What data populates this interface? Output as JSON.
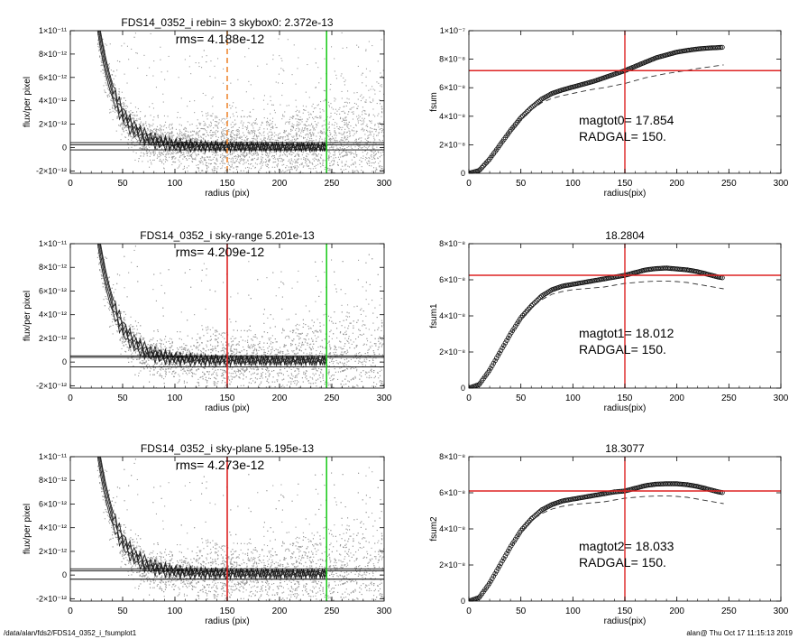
{
  "footer": {
    "left": "/data/alan/fds2/FDS14_0352_i_fsumplot1",
    "right": "alan@  Thu Oct 17 11:15:13 2019"
  },
  "colors": {
    "red": "#dd2222",
    "green": "#22cc22",
    "orange": "#ee8833",
    "points": "#9a9a9a"
  },
  "chart_data": [
    {
      "type": "scatter",
      "title": "FDS14_0352_i rebin= 3    skybox0:  2.372e-13",
      "annotation": "rms= 4.188e-12",
      "xlabel": "radius (pix)",
      "ylabel": "flux/per pixel",
      "xlim": [
        0,
        300
      ],
      "ylim": [
        -2.2e-12,
        1e-11
      ],
      "xticks": [
        0,
        50,
        100,
        150,
        200,
        250,
        300
      ],
      "yticks": [
        "-2×10⁻¹²",
        "0",
        "2×10⁻¹²",
        "4×10⁻¹²",
        "6×10⁻¹²",
        "8×10⁻¹²",
        "1×10⁻¹¹"
      ],
      "yticks_values": [
        -2e-12,
        0,
        2e-12,
        4e-12,
        6e-12,
        8e-12,
        1e-11
      ],
      "hlines": [
        2.372e-13,
        4.2e-13,
        -2e-13
      ],
      "vlines": [
        {
          "x": 150,
          "color": "orange",
          "dashed": true
        },
        {
          "x": 245,
          "color": "green",
          "dashed": false
        }
      ]
    },
    {
      "type": "scatter",
      "title": "FDS14_0352_i sky-range  5.201e-13",
      "annotation": "rms= 4.209e-12",
      "xlabel": "radius (pix)",
      "ylabel": "flux/per pixel",
      "xlim": [
        0,
        300
      ],
      "ylim": [
        -2.2e-12,
        1e-11
      ],
      "xticks": [
        0,
        50,
        100,
        150,
        200,
        250,
        300
      ],
      "yticks": [
        "-2×10⁻¹²",
        "0",
        "2×10⁻¹²",
        "4×10⁻¹²",
        "6×10⁻¹²",
        "8×10⁻¹²",
        "1×10⁻¹¹"
      ],
      "yticks_values": [
        -2e-12,
        0,
        2e-12,
        4e-12,
        6e-12,
        8e-12,
        1e-11
      ],
      "hlines": [
        5.201e-13,
        4e-13,
        -4e-13
      ],
      "vlines": [
        {
          "x": 150,
          "color": "red",
          "dashed": false
        },
        {
          "x": 245,
          "color": "green",
          "dashed": false
        }
      ]
    },
    {
      "type": "scatter",
      "title": "FDS14_0352_i sky-plane  5.195e-13",
      "annotation": "rms= 4.273e-12",
      "xlabel": "radius (pix)",
      "ylabel": "flux/per pixel",
      "xlim": [
        0,
        300
      ],
      "ylim": [
        -2.2e-12,
        1e-11
      ],
      "xticks": [
        0,
        50,
        100,
        150,
        200,
        250,
        300
      ],
      "yticks": [
        "-2×10⁻¹²",
        "0",
        "2×10⁻¹²",
        "4×10⁻¹²",
        "6×10⁻¹²",
        "8×10⁻¹²",
        "1×10⁻¹¹"
      ],
      "yticks_values": [
        -2e-12,
        0,
        2e-12,
        4e-12,
        6e-12,
        8e-12,
        1e-11
      ],
      "hlines": [
        5.195e-13,
        3.5e-13,
        -3.5e-13
      ],
      "vlines": [
        {
          "x": 150,
          "color": "red",
          "dashed": false
        },
        {
          "x": 245,
          "color": "green",
          "dashed": false
        }
      ]
    },
    {
      "type": "line",
      "title": "",
      "xlabel": "radius(pix)",
      "ylabel": "fsum",
      "annotations": [
        "magtot0=  17.854",
        "RADGAL=    150."
      ],
      "xlim": [
        0,
        300
      ],
      "ylim": [
        0,
        1e-07
      ],
      "xticks": [
        0,
        50,
        100,
        150,
        200,
        250,
        300
      ],
      "yticks": [
        "0",
        "2×10⁻⁸",
        "4×10⁻⁸",
        "6×10⁻⁸",
        "8×10⁻⁸",
        "1×10⁻⁷"
      ],
      "yticks_values": [
        0,
        2e-08,
        4e-08,
        6e-08,
        8e-08,
        1e-07
      ],
      "cross": {
        "x": 150,
        "y": 7.2e-08
      },
      "series": [
        {
          "style": "markers",
          "x": [
            0,
            10,
            20,
            30,
            40,
            50,
            60,
            70,
            80,
            90,
            100,
            110,
            120,
            130,
            140,
            150,
            160,
            170,
            180,
            190,
            200,
            210,
            220,
            230,
            240,
            245
          ],
          "values": [
            0,
            2e-09,
            1e-08,
            2e-08,
            3e-08,
            3.9e-08,
            4.6e-08,
            5.2e-08,
            5.6e-08,
            5.85e-08,
            6.05e-08,
            6.25e-08,
            6.45e-08,
            6.7e-08,
            6.95e-08,
            7.2e-08,
            7.5e-08,
            7.8e-08,
            8.1e-08,
            8.3e-08,
            8.5e-08,
            8.62e-08,
            8.72e-08,
            8.78e-08,
            8.82e-08,
            8.84e-08
          ]
        },
        {
          "style": "dashed",
          "x": [
            0,
            10,
            20,
            30,
            40,
            50,
            60,
            70,
            80,
            90,
            100,
            110,
            120,
            130,
            140,
            150,
            160,
            170,
            180,
            190,
            200,
            210,
            220,
            230,
            240,
            245
          ],
          "values": [
            0,
            2e-09,
            1e-08,
            2e-08,
            3e-08,
            3.85e-08,
            4.45e-08,
            4.95e-08,
            5.25e-08,
            5.45e-08,
            5.6e-08,
            5.75e-08,
            5.9e-08,
            6e-08,
            6.15e-08,
            6.3e-08,
            6.5e-08,
            6.7e-08,
            6.85e-08,
            7e-08,
            7.1e-08,
            7.22e-08,
            7.35e-08,
            7.45e-08,
            7.55e-08,
            7.6e-08
          ]
        }
      ]
    },
    {
      "type": "line",
      "title": "18.2804",
      "xlabel": "radius(pix)",
      "ylabel": "fsum1",
      "annotations": [
        "magtot1=  18.012",
        "RADGAL=    150."
      ],
      "xlim": [
        0,
        300
      ],
      "ylim": [
        0,
        8e-08
      ],
      "xticks": [
        0,
        50,
        100,
        150,
        200,
        250,
        300
      ],
      "yticks": [
        "0",
        "2×10⁻⁸",
        "4×10⁻⁸",
        "6×10⁻⁸",
        "8×10⁻⁸"
      ],
      "yticks_values": [
        0,
        2e-08,
        4e-08,
        6e-08,
        8e-08
      ],
      "cross": {
        "x": 150,
        "y": 6.25e-08
      },
      "series": [
        {
          "style": "markers",
          "x": [
            0,
            10,
            20,
            30,
            40,
            50,
            60,
            70,
            80,
            90,
            100,
            110,
            120,
            130,
            140,
            150,
            160,
            170,
            180,
            190,
            200,
            210,
            220,
            230,
            240,
            245
          ],
          "values": [
            0,
            2e-09,
            1e-08,
            2e-08,
            3e-08,
            3.9e-08,
            4.55e-08,
            5.1e-08,
            5.45e-08,
            5.65e-08,
            5.75e-08,
            5.85e-08,
            5.95e-08,
            6.05e-08,
            6.15e-08,
            6.25e-08,
            6.4e-08,
            6.55e-08,
            6.62e-08,
            6.65e-08,
            6.6e-08,
            6.55e-08,
            6.45e-08,
            6.3e-08,
            6.15e-08,
            6.1e-08
          ]
        },
        {
          "style": "dashed",
          "x": [
            0,
            10,
            20,
            30,
            40,
            50,
            60,
            70,
            80,
            90,
            100,
            110,
            120,
            130,
            140,
            150,
            160,
            170,
            180,
            190,
            200,
            210,
            220,
            230,
            240,
            245
          ],
          "values": [
            0,
            2e-09,
            1e-08,
            2e-08,
            3e-08,
            3.85e-08,
            4.45e-08,
            4.9e-08,
            5.2e-08,
            5.35e-08,
            5.45e-08,
            5.5e-08,
            5.55e-08,
            5.6e-08,
            5.7e-08,
            5.8e-08,
            5.85e-08,
            5.9e-08,
            5.92e-08,
            5.93e-08,
            5.9e-08,
            5.85e-08,
            5.75e-08,
            5.65e-08,
            5.55e-08,
            5.5e-08
          ]
        }
      ]
    },
    {
      "type": "line",
      "title": "18.3077",
      "xlabel": "radius(pix)",
      "ylabel": "fsum2",
      "annotations": [
        "magtot2=  18.033",
        "RADGAL=    150."
      ],
      "xlim": [
        0,
        300
      ],
      "ylim": [
        0,
        8e-08
      ],
      "xticks": [
        0,
        50,
        100,
        150,
        200,
        250,
        300
      ],
      "yticks": [
        "0",
        "2×10⁻⁸",
        "4×10⁻⁸",
        "6×10⁻⁸",
        "8×10⁻⁸"
      ],
      "yticks_values": [
        0,
        2e-08,
        4e-08,
        6e-08,
        8e-08
      ],
      "cross": {
        "x": 150,
        "y": 6.1e-08
      },
      "series": [
        {
          "style": "markers",
          "x": [
            0,
            10,
            20,
            30,
            40,
            50,
            60,
            70,
            80,
            90,
            100,
            110,
            120,
            130,
            140,
            150,
            160,
            170,
            180,
            190,
            200,
            210,
            220,
            230,
            240,
            245
          ],
          "values": [
            0,
            2e-09,
            1e-08,
            2e-08,
            3e-08,
            3.9e-08,
            4.55e-08,
            5.05e-08,
            5.35e-08,
            5.55e-08,
            5.65e-08,
            5.75e-08,
            5.85e-08,
            5.95e-08,
            6.05e-08,
            6.1e-08,
            6.25e-08,
            6.4e-08,
            6.48e-08,
            6.5e-08,
            6.5e-08,
            6.45e-08,
            6.35e-08,
            6.2e-08,
            6.05e-08,
            6e-08
          ]
        },
        {
          "style": "dashed",
          "x": [
            0,
            10,
            20,
            30,
            40,
            50,
            60,
            70,
            80,
            90,
            100,
            110,
            120,
            130,
            140,
            150,
            160,
            170,
            180,
            190,
            200,
            210,
            220,
            230,
            240,
            245
          ],
          "values": [
            0,
            2e-09,
            1e-08,
            2e-08,
            3e-08,
            3.85e-08,
            4.45e-08,
            4.85e-08,
            5.1e-08,
            5.25e-08,
            5.35e-08,
            5.4e-08,
            5.45e-08,
            5.5e-08,
            5.6e-08,
            5.7e-08,
            5.75e-08,
            5.8e-08,
            5.82e-08,
            5.83e-08,
            5.8e-08,
            5.75e-08,
            5.65e-08,
            5.55e-08,
            5.45e-08,
            5.4e-08
          ]
        }
      ]
    }
  ]
}
